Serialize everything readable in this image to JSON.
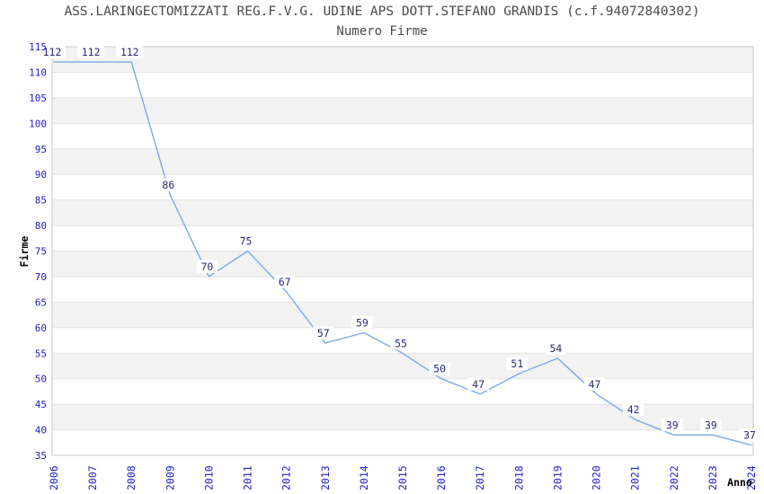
{
  "header": {
    "title": "ASS.LARINGECTOMIZZATI REG.F.V.G. UDINE APS DOTT.STEFANO GRANDIS (c.f.94072840302)",
    "subtitle": "Numero Firme"
  },
  "chart_data": {
    "type": "line",
    "title": "Numero Firme",
    "categories": [
      "2006",
      "2007",
      "2008",
      "2009",
      "2010",
      "2011",
      "2012",
      "2013",
      "2014",
      "2015",
      "2016",
      "2017",
      "2018",
      "2019",
      "2020",
      "2021",
      "2022",
      "2023",
      "2024"
    ],
    "values": [
      112,
      112,
      112,
      86,
      70,
      75,
      67,
      57,
      59,
      55,
      50,
      47,
      51,
      54,
      47,
      42,
      39,
      39,
      37
    ],
    "xlabel": "Anno",
    "ylabel": "Firme",
    "ylim": [
      35,
      115
    ],
    "ytick_step": 5,
    "grid": "horizontal-gridlines-with-alternating-bands",
    "legend_position": "none",
    "point_labels": "values shown above each point on white boxes"
  },
  "colors": {
    "line": "#7aaae6",
    "value_label": "#29297c",
    "tick_label": "#2121cc",
    "band": "#f2f2f3",
    "gridline": "#e2e2e2",
    "border": "#c8c8c8",
    "title_text": "#4a4a4a",
    "axis_title": "#000000",
    "background": "#ffffff"
  }
}
